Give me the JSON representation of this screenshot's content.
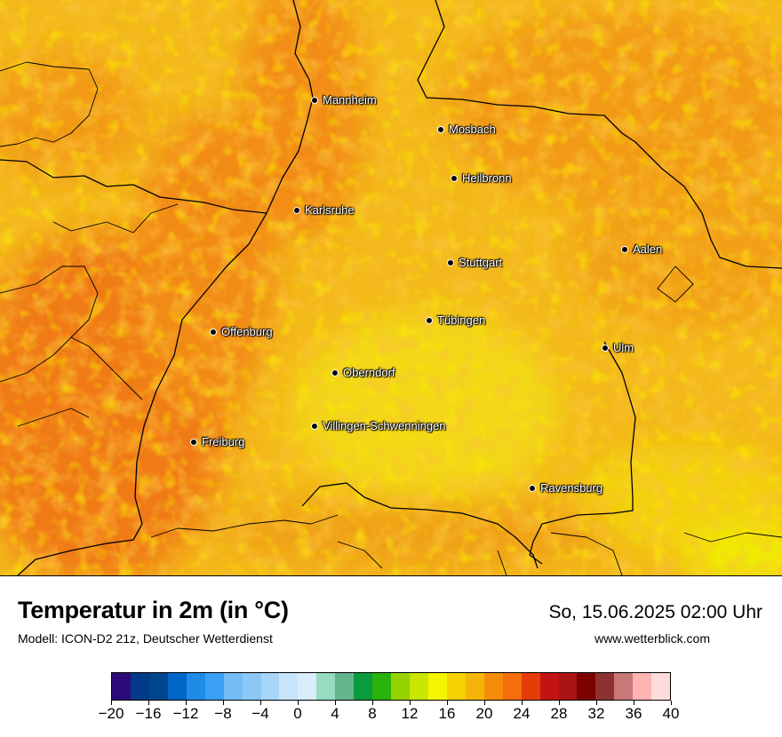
{
  "title": "Temperatur in 2m (in °C)",
  "subtitle": "Modell: ICON-D2 21z, Deutscher Wetterdienst",
  "datetime": "So, 15.06.2025 02:00 Uhr",
  "website": "www.wetterblick.com",
  "cities": [
    {
      "name": "Mannheim"
    },
    {
      "name": "Mosbach"
    },
    {
      "name": "Heilbronn"
    },
    {
      "name": "Karlsruhe"
    },
    {
      "name": "Aalen"
    },
    {
      "name": "Stuttgart"
    },
    {
      "name": "Tübingen"
    },
    {
      "name": "Offenburg"
    },
    {
      "name": "Ulm"
    },
    {
      "name": "Oberndorf"
    },
    {
      "name": "Villingen-Schwenningen"
    },
    {
      "name": "Freiburg"
    },
    {
      "name": "Ravensburg"
    }
  ],
  "legend": {
    "colors": [
      "#2c0a7a",
      "#003a88",
      "#00468c",
      "#0066c8",
      "#1e8ce6",
      "#3aa0f5",
      "#74bcf5",
      "#8cc8f5",
      "#a8d6f8",
      "#c8e4fa",
      "#d9ecfc",
      "#96dcc0",
      "#64b48c",
      "#0a9b3c",
      "#28b40a",
      "#96d200",
      "#c8e600",
      "#f5f500",
      "#f5d200",
      "#f5b40a",
      "#f58c0a",
      "#f56e0a",
      "#e63c0a",
      "#c31414",
      "#aa1414",
      "#7d0000",
      "#8c3232",
      "#c87878",
      "#ffb4b4",
      "#ffdcdc"
    ],
    "ticks": [
      "−20",
      "−16",
      "−12",
      "−8",
      "−4",
      "0",
      "4",
      "8",
      "12",
      "16",
      "20",
      "24",
      "28",
      "32",
      "36",
      "40"
    ],
    "min": -20,
    "max": 40
  }
}
